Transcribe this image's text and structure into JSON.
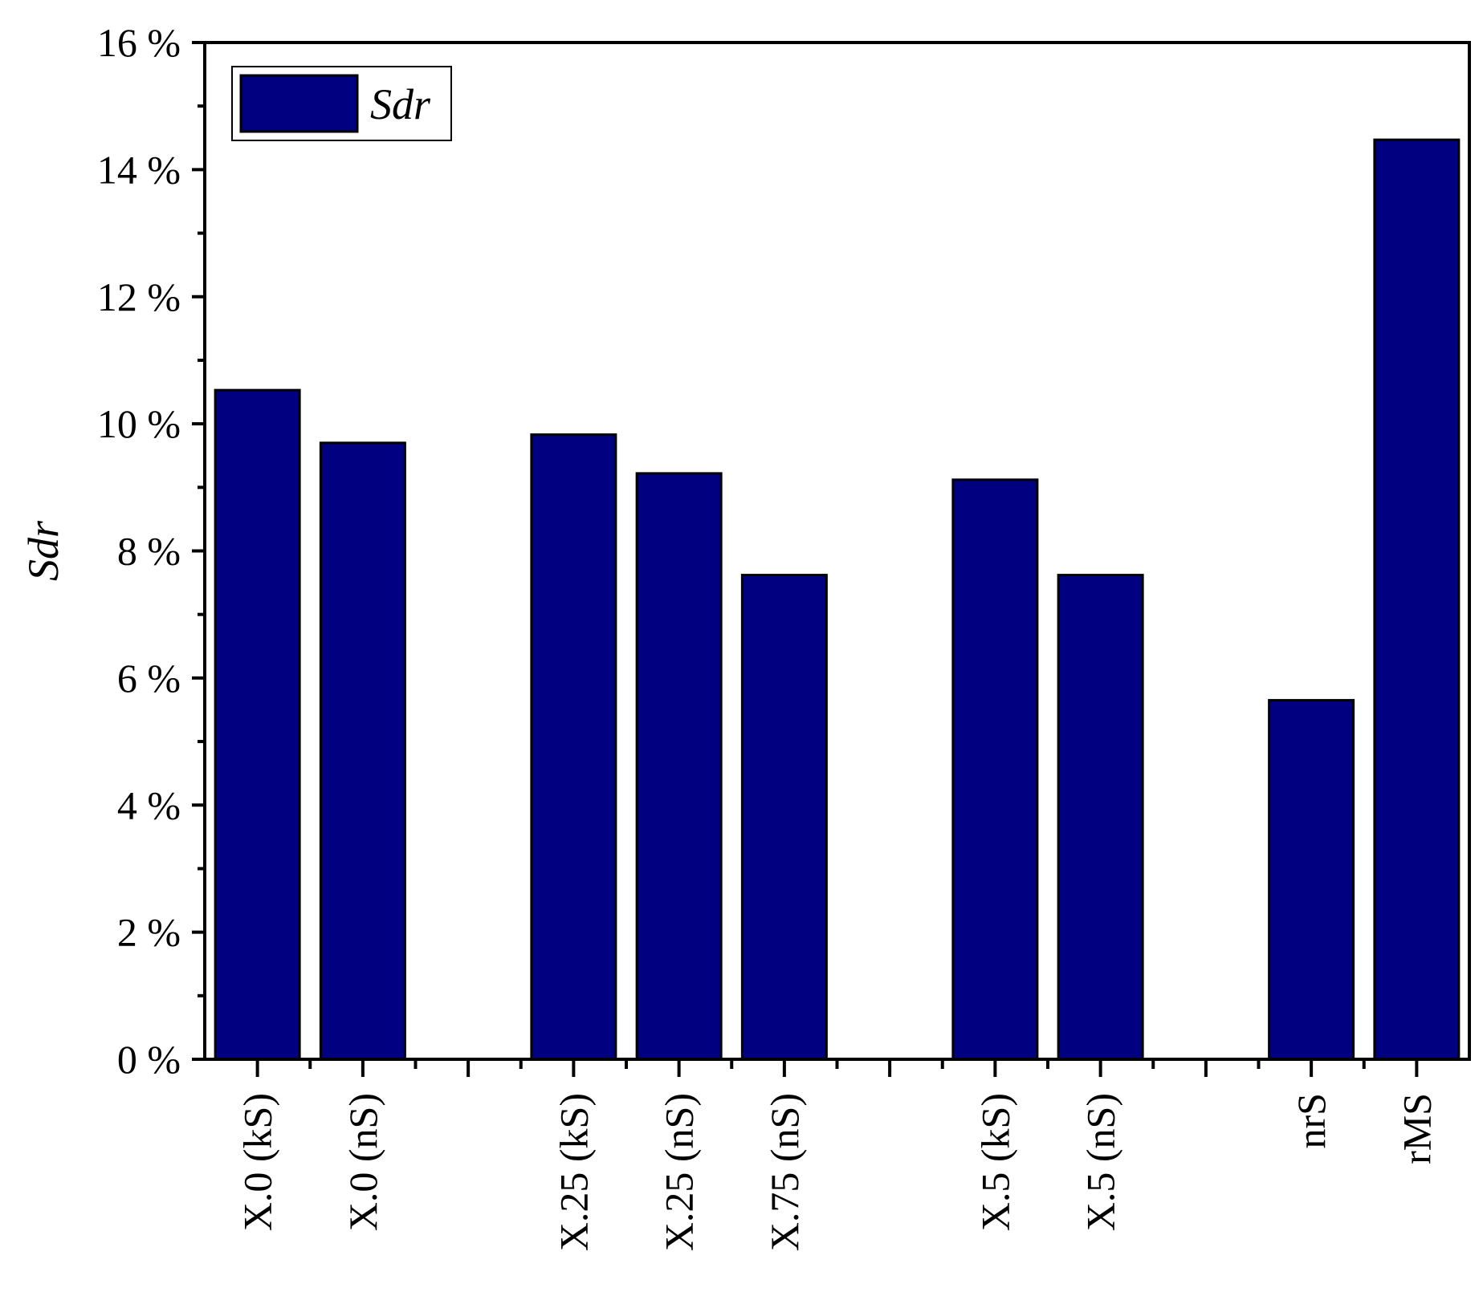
{
  "chart_data": {
    "type": "bar",
    "categories": [
      "X.0 (kS)",
      "X.0 (nS)",
      "",
      "X.25 (kS)",
      "X.25 (nS)",
      "X.75 (nS)",
      "",
      "X.5 (kS)",
      "X.5 (nS)",
      "",
      "nrS",
      "rMS"
    ],
    "series": [
      {
        "name": "Sdr",
        "values": [
          10.53,
          9.7,
          null,
          9.83,
          9.22,
          7.62,
          null,
          9.12,
          7.62,
          null,
          5.65,
          14.47
        ],
        "color": "#000080"
      }
    ],
    "ylabel": "Sdr",
    "xlabel": "",
    "ylim": [
      0,
      16
    ],
    "yticks": [
      "0 %",
      "2 %",
      "4 %",
      "6 %",
      "8 %",
      "10 %",
      "12 %",
      "14 %",
      "16 %"
    ],
    "ytick_values": [
      0,
      2,
      4,
      6,
      8,
      10,
      12,
      14,
      16
    ],
    "legend": {
      "position": "top-left",
      "label": "Sdr"
    },
    "grid": false
  }
}
